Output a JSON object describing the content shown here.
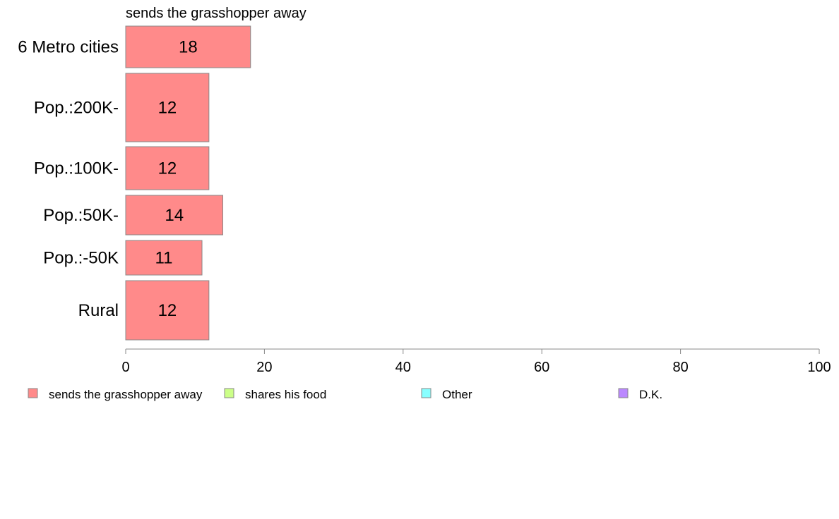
{
  "chart_data": {
    "type": "bar",
    "orientation": "horizontal",
    "title": "sends the grasshopper away",
    "xlabel": "",
    "ylabel": "",
    "categories": [
      "6 Metro cities",
      "Pop.:200K-",
      "Pop.:100K-",
      "Pop.:50K-",
      "Pop.:-50K",
      "Rural"
    ],
    "series": [
      {
        "name": "sends the grasshopper away",
        "values": [
          18,
          12,
          12,
          14,
          11,
          12
        ],
        "color": "#ff8a8a"
      }
    ],
    "xlim": [
      0,
      100
    ],
    "x_ticks": [
      "0",
      "20",
      "40",
      "60",
      "80",
      "100"
    ],
    "grid": false,
    "legend_placement": "bottom",
    "legend": [
      {
        "label": "sends the grasshopper away",
        "color": "#ff8a8a"
      },
      {
        "label": "shares his food",
        "color": "#ccff88"
      },
      {
        "label": "Other",
        "color": "#88ffff"
      },
      {
        "label": "D.K.",
        "color": "#bb88ff"
      }
    ]
  }
}
